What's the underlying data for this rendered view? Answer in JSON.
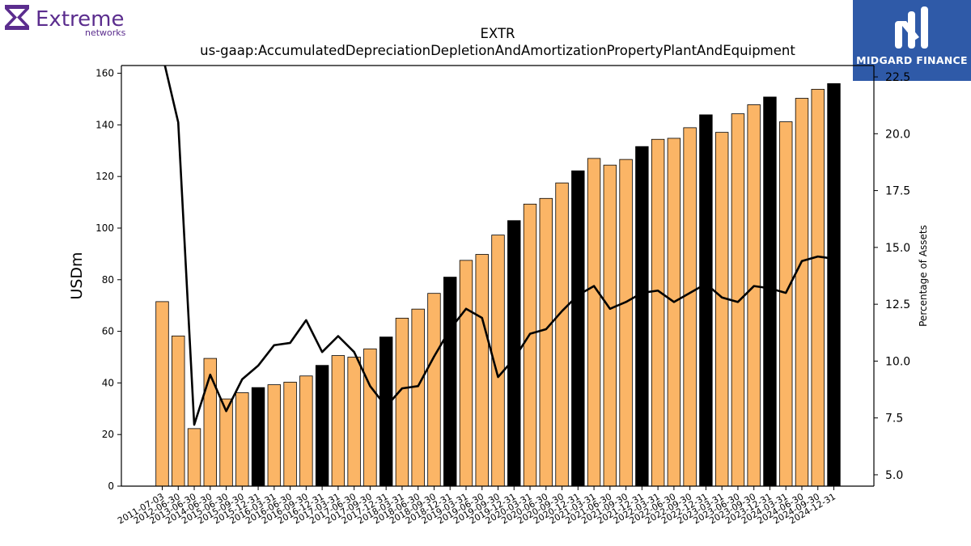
{
  "header": {
    "brand_left": "Extreme",
    "brand_left_sub": "networks",
    "brand_right": "MIDGARD FINANCE"
  },
  "chart_data": {
    "type": "bar",
    "title": "EXTR",
    "subtitle": "us-gaap:AccumulatedDepreciationDepletionAndAmortizationPropertyPlantAndEquipment",
    "ylabel": "USDm",
    "y2label": "Percentage of Assets",
    "ylim": [
      0,
      163
    ],
    "y2lim": [
      4.5,
      23.0
    ],
    "yticks": [
      0,
      20,
      40,
      60,
      80,
      100,
      120,
      140,
      160
    ],
    "y2ticks": [
      "5.0",
      "7.5",
      "10.0",
      "12.5",
      "15.0",
      "17.5",
      "20.0",
      "22.5"
    ],
    "colors": {
      "bar": "#fbb566",
      "bar_fy": "#000000",
      "line": "#000000",
      "edge": "#000000"
    },
    "categories": [
      "2011-07-03",
      "2012-06-30",
      "2013-06-30",
      "2014-06-30",
      "2015-06-30",
      "2015-09-30",
      "2015-12-31",
      "2016-03-31",
      "2016-06-30",
      "2016-09-30",
      "2016-12-31",
      "2017-03-31",
      "2017-06-30",
      "2017-09-30",
      "2017-12-31",
      "2018-03-31",
      "2018-06-30",
      "2018-09-30",
      "2018-12-31",
      "2019-03-31",
      "2019-06-30",
      "2019-09-30",
      "2019-12-31",
      "2020-03-31",
      "2020-06-30",
      "2020-09-30",
      "2020-12-31",
      "2021-03-31",
      "2021-06-30",
      "2021-09-30",
      "2021-12-31",
      "2022-03-31",
      "2022-06-30",
      "2022-09-30",
      "2022-12-31",
      "2023-03-31",
      "2023-06-30",
      "2023-09-30",
      "2023-12-31",
      "2024-03-31",
      "2024-06-30",
      "2024-09-30",
      "2024-12-31"
    ],
    "series": [
      {
        "type": "bar",
        "values": [
          71.5,
          58.2,
          22.3,
          49.5,
          33.8,
          36.2,
          38.2,
          39.3,
          40.3,
          42.7,
          46.8,
          50.6,
          50.0,
          53.2,
          57.8,
          65.1,
          68.6,
          74.7,
          81.0,
          87.5,
          89.8,
          97.3,
          102.9,
          109.3,
          111.5,
          117.5,
          122.2,
          127.0,
          124.4,
          126.6,
          131.6,
          134.4,
          134.8,
          138.9,
          143.9,
          137.1,
          144.3,
          147.8,
          150.8,
          141.2,
          150.3,
          153.8,
          156.0
        ],
        "highlight": [
          false,
          false,
          false,
          false,
          false,
          false,
          true,
          false,
          false,
          false,
          true,
          false,
          false,
          false,
          true,
          false,
          false,
          false,
          true,
          false,
          false,
          false,
          true,
          false,
          false,
          false,
          true,
          false,
          false,
          false,
          true,
          false,
          false,
          false,
          true,
          false,
          false,
          false,
          true,
          false,
          false,
          false,
          true
        ]
      },
      {
        "type": "line",
        "axis": "right",
        "values": [
          23.5,
          20.5,
          7.2,
          9.4,
          7.8,
          9.2,
          9.8,
          10.7,
          10.8,
          11.8,
          10.4,
          11.1,
          10.4,
          8.9,
          8.0,
          8.8,
          8.9,
          10.2,
          11.4,
          12.3,
          11.9,
          9.3,
          10.1,
          11.2,
          11.4,
          12.2,
          12.9,
          13.3,
          12.3,
          12.6,
          13.0,
          13.1,
          12.6,
          13.0,
          13.4,
          12.8,
          12.6,
          13.3,
          13.2,
          13.0,
          14.4,
          14.6,
          14.5
        ]
      }
    ]
  }
}
